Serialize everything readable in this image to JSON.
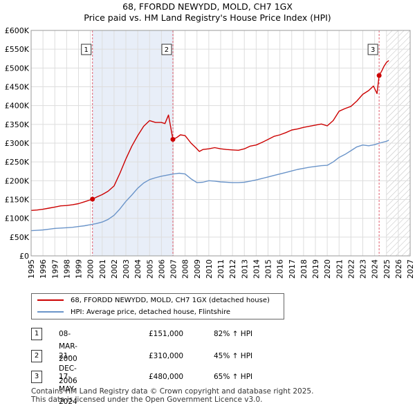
{
  "title": {
    "line1": "68, FFORDD NEWYDD, MOLD, CH7 1GX",
    "line2": "Price paid vs. HM Land Registry's House Price Index (HPI)"
  },
  "chart_data": {
    "type": "line",
    "ylim": [
      0,
      600000
    ],
    "xlim": [
      1995,
      2027
    ],
    "y_ticks": [
      0,
      50000,
      100000,
      150000,
      200000,
      250000,
      300000,
      350000,
      400000,
      450000,
      500000,
      550000,
      600000
    ],
    "y_tick_labels": [
      "£0",
      "£50K",
      "£100K",
      "£150K",
      "£200K",
      "£250K",
      "£300K",
      "£350K",
      "£400K",
      "£450K",
      "£500K",
      "£550K",
      "£600K"
    ],
    "x_ticks": [
      1995,
      1996,
      1997,
      1998,
      1999,
      2000,
      2001,
      2002,
      2003,
      2004,
      2005,
      2006,
      2007,
      2008,
      2009,
      2010,
      2011,
      2012,
      2013,
      2014,
      2015,
      2016,
      2017,
      2018,
      2019,
      2020,
      2021,
      2022,
      2023,
      2024,
      2025,
      2026,
      2027
    ],
    "x_tick_labels": [
      "1995",
      "1996",
      "1997",
      "1998",
      "1999",
      "2000",
      "2001",
      "2002",
      "2003",
      "2004",
      "2005",
      "2006",
      "2007",
      "2008",
      "2009",
      "2010",
      "2011",
      "2012",
      "2013",
      "2014",
      "2015",
      "2016",
      "2017",
      "2018",
      "2019",
      "2020",
      "2021",
      "2022",
      "2023",
      "2024",
      "2025",
      "2026",
      "2027"
    ],
    "grid": true,
    "shaded_ownership": [
      [
        2000.18,
        2006.97
      ]
    ],
    "hatched_future_from": 2025.0,
    "colors": {
      "property": "#cc0000",
      "hpi": "#6a94c9",
      "shade": "#e8eef8",
      "vline": "#e06070"
    },
    "series": [
      {
        "name": "property",
        "x": [
          1995.0,
          1995.5,
          1996.0,
          1996.5,
          1997.0,
          1997.5,
          1998.0,
          1998.5,
          1999.0,
          1999.5,
          2000.18,
          2000.5,
          2001.0,
          2001.5,
          2002.0,
          2002.5,
          2003.0,
          2003.5,
          2004.0,
          2004.5,
          2005.0,
          2005.5,
          2006.0,
          2006.3,
          2006.6,
          2006.97,
          2007.3,
          2007.6,
          2008.0,
          2008.5,
          2008.9,
          2009.2,
          2009.5,
          2010.0,
          2010.5,
          2011.0,
          2011.5,
          2012.0,
          2012.5,
          2013.0,
          2013.5,
          2014.0,
          2014.5,
          2015.0,
          2015.5,
          2016.0,
          2016.5,
          2017.0,
          2017.5,
          2018.0,
          2018.5,
          2019.0,
          2019.5,
          2020.0,
          2020.5,
          2021.0,
          2021.5,
          2022.0,
          2022.5,
          2023.0,
          2023.5,
          2023.9,
          2024.2,
          2024.38,
          2024.6,
          2024.8,
          2025.0,
          2025.2
        ],
        "values": [
          121000,
          122000,
          124000,
          127000,
          130000,
          133000,
          134000,
          136000,
          139000,
          144000,
          151000,
          156000,
          163000,
          172000,
          186000,
          220000,
          258000,
          292000,
          320000,
          345000,
          360000,
          355000,
          355000,
          352000,
          375000,
          310000,
          315000,
          322000,
          320000,
          300000,
          288000,
          278000,
          283000,
          285000,
          288000,
          285000,
          283000,
          282000,
          281000,
          285000,
          292000,
          295000,
          302000,
          310000,
          318000,
          322000,
          328000,
          335000,
          338000,
          342000,
          345000,
          348000,
          351000,
          346000,
          360000,
          385000,
          392000,
          398000,
          412000,
          430000,
          440000,
          452000,
          432000,
          480000,
          492000,
          505000,
          515000,
          520000
        ]
      },
      {
        "name": "hpi",
        "x": [
          1995.0,
          1995.5,
          1996.0,
          1996.5,
          1997.0,
          1997.5,
          1998.0,
          1998.5,
          1999.0,
          1999.5,
          2000.0,
          2000.5,
          2001.0,
          2001.5,
          2002.0,
          2002.5,
          2003.0,
          2003.5,
          2004.0,
          2004.5,
          2005.0,
          2005.5,
          2006.0,
          2006.5,
          2007.0,
          2007.5,
          2008.0,
          2008.5,
          2009.0,
          2009.5,
          2010.0,
          2010.5,
          2011.0,
          2011.5,
          2012.0,
          2012.5,
          2013.0,
          2013.5,
          2014.0,
          2014.5,
          2015.0,
          2015.5,
          2016.0,
          2016.5,
          2017.0,
          2017.5,
          2018.0,
          2018.5,
          2019.0,
          2019.5,
          2020.0,
          2020.5,
          2021.0,
          2021.5,
          2022.0,
          2022.5,
          2023.0,
          2023.5,
          2024.0,
          2024.5,
          2025.0,
          2025.2
        ],
        "values": [
          67000,
          68000,
          69000,
          71000,
          73000,
          74000,
          75000,
          76000,
          78000,
          80000,
          83000,
          86000,
          90000,
          97000,
          108000,
          125000,
          145000,
          162000,
          180000,
          194000,
          203000,
          208000,
          212000,
          215000,
          218000,
          220000,
          218000,
          205000,
          195000,
          196000,
          200000,
          199000,
          197000,
          196000,
          195000,
          195000,
          196000,
          199000,
          202000,
          206000,
          210000,
          214000,
          218000,
          222000,
          226000,
          230000,
          233000,
          236000,
          238000,
          240000,
          241000,
          250000,
          262000,
          270000,
          280000,
          290000,
          295000,
          293000,
          296000,
          301000,
          305000,
          308000
        ]
      }
    ],
    "sales": [
      {
        "label": "1",
        "x": 2000.18,
        "price": 151000
      },
      {
        "label": "2",
        "x": 2006.97,
        "price": 310000
      },
      {
        "label": "3",
        "x": 2024.38,
        "price": 480000
      }
    ]
  },
  "legend": {
    "property_label": "68, FFORDD NEWYDD, MOLD, CH7 1GX (detached house)",
    "hpi_label": "HPI: Average price, detached house, Flintshire"
  },
  "sales_table": [
    {
      "num": "1",
      "date": "08-MAR-2000",
      "price": "£151,000",
      "hpi": "82% ↑ HPI"
    },
    {
      "num": "2",
      "date": "21-DEC-2006",
      "price": "£310,000",
      "hpi": "45% ↑ HPI"
    },
    {
      "num": "3",
      "date": "17-MAY-2024",
      "price": "£480,000",
      "hpi": "65% ↑ HPI"
    }
  ],
  "footer": {
    "line1": "Contains HM Land Registry data © Crown copyright and database right 2025.",
    "line2": "This data is licensed under the Open Government Licence v3.0."
  }
}
